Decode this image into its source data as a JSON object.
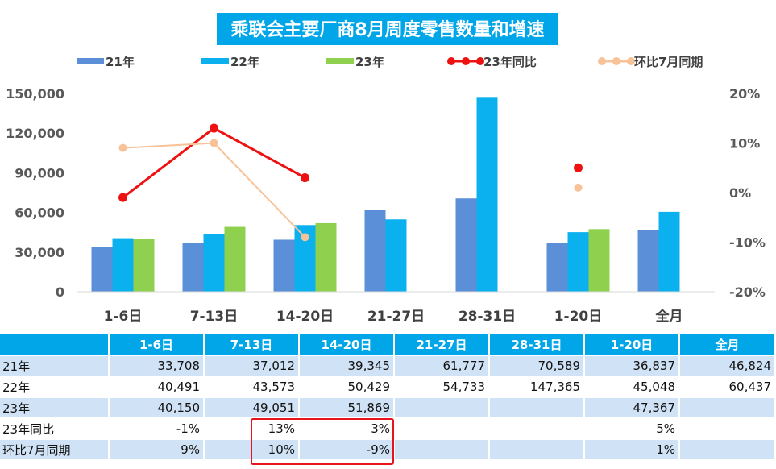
{
  "chart_data": {
    "type": "bar",
    "title": "乘联会主要厂商8月周度零售数量和增速",
    "categories": [
      "1-6日",
      "7-13日",
      "14-20日",
      "21-27日",
      "28-31日",
      "1-20日",
      "全月"
    ],
    "series": [
      {
        "name": "21年",
        "kind": "bar",
        "axis": "left",
        "color": "#5b8fd8",
        "values": [
          33708,
          37012,
          39345,
          61777,
          70589,
          36837,
          46824
        ]
      },
      {
        "name": "22年",
        "kind": "bar",
        "axis": "left",
        "color": "#0bb0ee",
        "values": [
          40491,
          43573,
          50429,
          54733,
          147365,
          45048,
          60437
        ]
      },
      {
        "name": "23年",
        "kind": "bar",
        "axis": "left",
        "color": "#8fd14f",
        "values": [
          40150,
          49051,
          51869,
          null,
          null,
          47367,
          null
        ]
      },
      {
        "name": "23年同比",
        "kind": "line",
        "axis": "right",
        "color": "#ee1111",
        "values": [
          -1,
          13,
          3,
          null,
          null,
          5,
          null
        ]
      },
      {
        "name": "环比7月同期",
        "kind": "line",
        "axis": "right",
        "color": "#f7c298",
        "values": [
          9,
          10,
          -9,
          null,
          null,
          1,
          null
        ]
      }
    ],
    "ylim_left": [
      0,
      150000
    ],
    "yticks_left": [
      "0",
      "30,000",
      "60,000",
      "90,000",
      "120,000",
      "150,000"
    ],
    "ylim_right": [
      -20,
      20
    ],
    "yticks_right": [
      "-20%",
      "-10%",
      "0%",
      "10%",
      "20%"
    ],
    "legend_position": "top",
    "grid": false
  },
  "table": {
    "headers": [
      "",
      "1-6日",
      "7-13日",
      "14-20日",
      "21-27日",
      "28-31日",
      "1-20日",
      "全月"
    ],
    "rows": [
      [
        "21年",
        "33,708",
        "37,012",
        "39,345",
        "61,777",
        "70,589",
        "36,837",
        "46,824"
      ],
      [
        "22年",
        "40,491",
        "43,573",
        "50,429",
        "54,733",
        "147,365",
        "45,048",
        "60,437"
      ],
      [
        "23年",
        "40,150",
        "49,051",
        "51,869",
        "",
        "",
        "47,367",
        ""
      ],
      [
        "23年同比",
        "-1%",
        "13%",
        "3%",
        "",
        "",
        "5%",
        ""
      ],
      [
        "环比7月同期",
        "9%",
        "10%",
        "-9%",
        "",
        "",
        "1%",
        ""
      ]
    ]
  },
  "colors": {
    "title_bg": "#00a6e8",
    "table_header_bg": "#00a6e8",
    "table_band": "#d0e2f5",
    "highlight_border": "#e8141b"
  }
}
